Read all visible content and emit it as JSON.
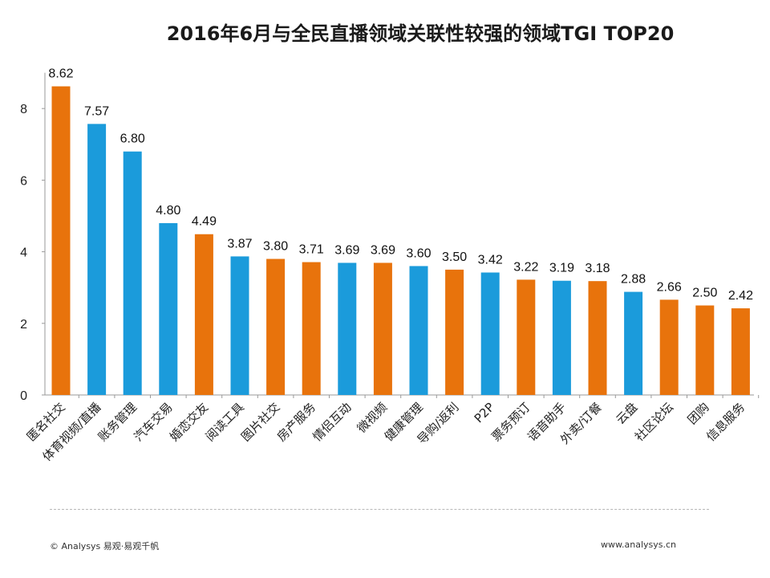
{
  "chart_data": {
    "type": "bar",
    "title": "2016年6月与全民直播领域关联性较强的领域TGI TOP20",
    "xlabel": "",
    "ylabel": "",
    "ylim": [
      0,
      9
    ],
    "yticks": [
      0,
      2,
      4,
      6,
      8
    ],
    "grid": false,
    "categories": [
      "匿名社交",
      "体育视频/直播",
      "账务管理",
      "汽车交易",
      "婚恋交友",
      "阅读工具",
      "图片社交",
      "房产服务",
      "情侣互动",
      "微视频",
      "健康管理",
      "导购/返利",
      "P2P",
      "票务预订",
      "语音助手",
      "外卖/订餐",
      "云盘",
      "社区论坛",
      "团购",
      "信息服务"
    ],
    "values": [
      8.62,
      7.57,
      6.8,
      4.8,
      4.49,
      3.87,
      3.8,
      3.71,
      3.69,
      3.69,
      3.6,
      3.5,
      3.42,
      3.22,
      3.19,
      3.18,
      2.88,
      2.66,
      2.5,
      2.42
    ],
    "value_labels": [
      "8.62",
      "7.57",
      "6.80",
      "4.80",
      "4.49",
      "3.87",
      "3.80",
      "3.71",
      "3.69",
      "3.69",
      "3.60",
      "3.50",
      "3.42",
      "3.22",
      "3.19",
      "3.18",
      "2.88",
      "2.66",
      "2.50",
      "2.42"
    ],
    "bar_colors": [
      "#E8730C",
      "#1B9BDB",
      "#1B9BDB",
      "#1B9BDB",
      "#E8730C",
      "#1B9BDB",
      "#E8730C",
      "#E8730C",
      "#1B9BDB",
      "#E8730C",
      "#1B9BDB",
      "#E8730C",
      "#1B9BDB",
      "#E8730C",
      "#1B9BDB",
      "#E8730C",
      "#1B9BDB",
      "#E8730C",
      "#E8730C",
      "#E8730C"
    ]
  },
  "footer": {
    "copyright": "© Analysys 易观·易观千帆",
    "website": "www.analysys.cn"
  },
  "colors": {
    "orange": "#E8730C",
    "blue": "#1B9BDB",
    "axis": "#9a9a9a"
  }
}
